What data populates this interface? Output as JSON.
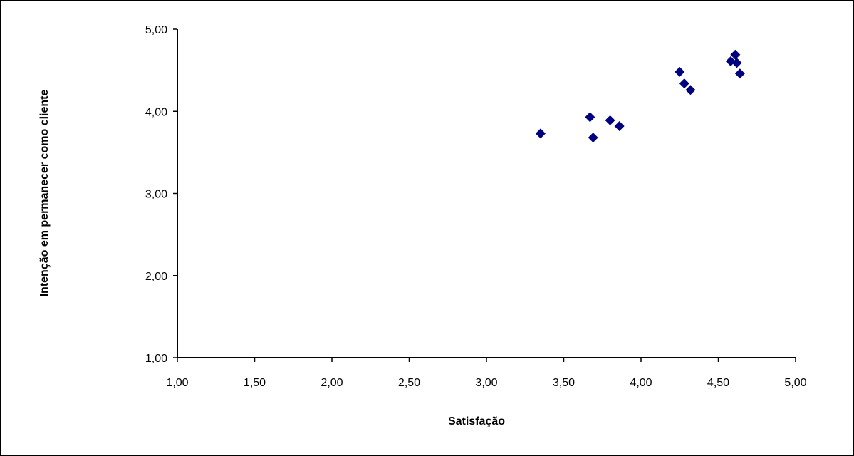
{
  "chart_data": {
    "type": "scatter",
    "title": "",
    "xlabel": "Satisfação",
    "ylabel": "Intenção em permanecer como cliente",
    "xlim": [
      1.0,
      5.0
    ],
    "ylim": [
      1.0,
      5.0
    ],
    "x_ticks": [
      1.0,
      1.5,
      2.0,
      2.5,
      3.0,
      3.5,
      4.0,
      4.5,
      5.0
    ],
    "x_tick_labels": [
      "1,00",
      "1,50",
      "2,00",
      "2,50",
      "3,00",
      "3,50",
      "4,00",
      "4,50",
      "5,00"
    ],
    "y_ticks": [
      1.0,
      2.0,
      3.0,
      4.0,
      5.0
    ],
    "y_tick_labels": [
      "1,00",
      "2,00",
      "3,00",
      "4,00",
      "5,00"
    ],
    "grid": false,
    "legend": "none",
    "marker": "diamond",
    "marker_color": "#000080",
    "points": [
      {
        "x": 3.35,
        "y": 3.73
      },
      {
        "x": 3.67,
        "y": 3.93
      },
      {
        "x": 3.69,
        "y": 3.68
      },
      {
        "x": 3.8,
        "y": 3.89
      },
      {
        "x": 3.86,
        "y": 3.82
      },
      {
        "x": 4.25,
        "y": 4.48
      },
      {
        "x": 4.28,
        "y": 4.34
      },
      {
        "x": 4.32,
        "y": 4.26
      },
      {
        "x": 4.58,
        "y": 4.61
      },
      {
        "x": 4.61,
        "y": 4.69
      },
      {
        "x": 4.62,
        "y": 4.59
      },
      {
        "x": 4.64,
        "y": 4.46
      }
    ]
  }
}
